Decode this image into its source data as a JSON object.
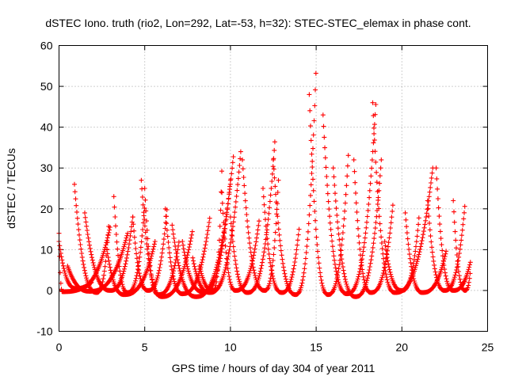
{
  "chart_data": {
    "type": "scatter",
    "title": "dSTEC Iono. truth (rio2, Lon=292, Lat=-53, h=32): STEC-STEC_elemax in phase cont.",
    "xlabel": "GPS time / hours of day 304 of year 2011",
    "ylabel": "dSTEC  / TECUs",
    "xlim": [
      0,
      25
    ],
    "ylim": [
      -10,
      60
    ],
    "xticks": [
      "0",
      "5",
      "10",
      "15",
      "20",
      "25"
    ],
    "yticks": [
      "-10",
      "0",
      "10",
      "20",
      "30",
      "40",
      "50",
      "60"
    ],
    "grid": true,
    "marker": "+",
    "color": "#ff0000",
    "arcs": [
      {
        "start": 0.0,
        "min_t": 0.2,
        "end": 1.9,
        "start_val": 14,
        "end_val": 2,
        "min_val": -0.3
      },
      {
        "start": 0.9,
        "min_t": 2.2,
        "end": 2.9,
        "start_val": 26,
        "end_val": 16,
        "min_val": -0.5
      },
      {
        "start": 0.0,
        "min_t": 1.0,
        "end": 3.0,
        "start_val": 12,
        "end_val": 16,
        "min_val": 0.5
      },
      {
        "start": 0.5,
        "min_t": 1.8,
        "end": 4.0,
        "start_val": 6,
        "end_val": 14,
        "min_val": -0.2
      },
      {
        "start": 1.5,
        "min_t": 3.0,
        "end": 4.3,
        "start_val": 19,
        "end_val": 18,
        "min_val": 0.0
      },
      {
        "start": 3.2,
        "min_t": 4.0,
        "end": 5.0,
        "start_val": 23,
        "end_val": 21,
        "min_val": -0.5
      },
      {
        "start": 2.8,
        "min_t": 3.8,
        "end": 5.6,
        "start_val": 10,
        "end_val": 12,
        "min_val": -1.0
      },
      {
        "start": 4.8,
        "min_t": 6.0,
        "end": 7.8,
        "start_val": 27,
        "end_val": 15,
        "min_val": -1.5
      },
      {
        "start": 5.0,
        "min_t": 5.8,
        "end": 7.0,
        "start_val": 25,
        "end_val": 12,
        "min_val": -1.0
      },
      {
        "start": 4.3,
        "min_t": 5.2,
        "end": 6.3,
        "start_val": 18,
        "end_val": 20,
        "min_val": 0.0
      },
      {
        "start": 6.2,
        "min_t": 7.2,
        "end": 8.8,
        "start_val": 20,
        "end_val": 18,
        "min_val": -0.8
      },
      {
        "start": 6.6,
        "min_t": 8.0,
        "end": 10.2,
        "start_val": 16,
        "end_val": 34,
        "min_val": -1.5
      },
      {
        "start": 7.2,
        "min_t": 8.4,
        "end": 10.0,
        "start_val": 12,
        "end_val": 27,
        "min_val": -0.3
      },
      {
        "start": 7.8,
        "min_t": 8.8,
        "end": 10.6,
        "start_val": 8,
        "end_val": 34,
        "min_val": -0.5
      },
      {
        "start": 8.2,
        "min_t": 9.0,
        "end": 9.5,
        "start_val": 6,
        "end_val": 30,
        "min_val": 0.0
      },
      {
        "start": 10.0,
        "min_t": 11.0,
        "end": 12.6,
        "start_val": 18,
        "end_val": 37,
        "min_val": -0.5
      },
      {
        "start": 10.7,
        "min_t": 12.0,
        "end": 12.8,
        "start_val": 32,
        "end_val": 27,
        "min_val": 0.0
      },
      {
        "start": 9.5,
        "min_t": 10.3,
        "end": 11.7,
        "start_val": 24,
        "end_val": 18,
        "min_val": 0.0
      },
      {
        "start": 11.9,
        "min_t": 13.0,
        "end": 14.0,
        "start_val": 25,
        "end_val": 15,
        "min_val": -0.5
      },
      {
        "start": 12.5,
        "min_t": 13.8,
        "end": 15.0,
        "start_val": 32,
        "end_val": 55,
        "min_val": -1.0
      },
      {
        "start": 14.6,
        "min_t": 15.7,
        "end": 16.9,
        "start_val": 48,
        "end_val": 35,
        "min_val": -1.0
      },
      {
        "start": 15.4,
        "min_t": 16.8,
        "end": 18.5,
        "start_val": 43,
        "end_val": 47,
        "min_val": -0.8
      },
      {
        "start": 16.0,
        "min_t": 17.3,
        "end": 18.8,
        "start_val": 30,
        "end_val": 32,
        "min_val": -1.5
      },
      {
        "start": 17.2,
        "min_t": 18.2,
        "end": 19.5,
        "start_val": 32,
        "end_val": 22,
        "min_val": -0.5
      },
      {
        "start": 18.3,
        "min_t": 19.6,
        "end": 21.8,
        "start_val": 46,
        "end_val": 30,
        "min_val": -0.5
      },
      {
        "start": 19.0,
        "min_t": 20.0,
        "end": 21.0,
        "start_val": 12,
        "end_val": 18,
        "min_val": 0.0
      },
      {
        "start": 20.2,
        "min_t": 21.2,
        "end": 22.6,
        "start_val": 19,
        "end_val": 10,
        "min_val": -0.5
      },
      {
        "start": 21.5,
        "min_t": 22.5,
        "end": 23.7,
        "start_val": 22,
        "end_val": 22,
        "min_val": 0.0
      },
      {
        "start": 22.0,
        "min_t": 23.0,
        "end": 24.0,
        "start_val": 30,
        "end_val": 7,
        "min_val": 0.0
      },
      {
        "start": 23.0,
        "min_t": 23.7,
        "end": 24.0,
        "start_val": 22,
        "end_val": 5,
        "min_val": 0.0
      }
    ]
  }
}
